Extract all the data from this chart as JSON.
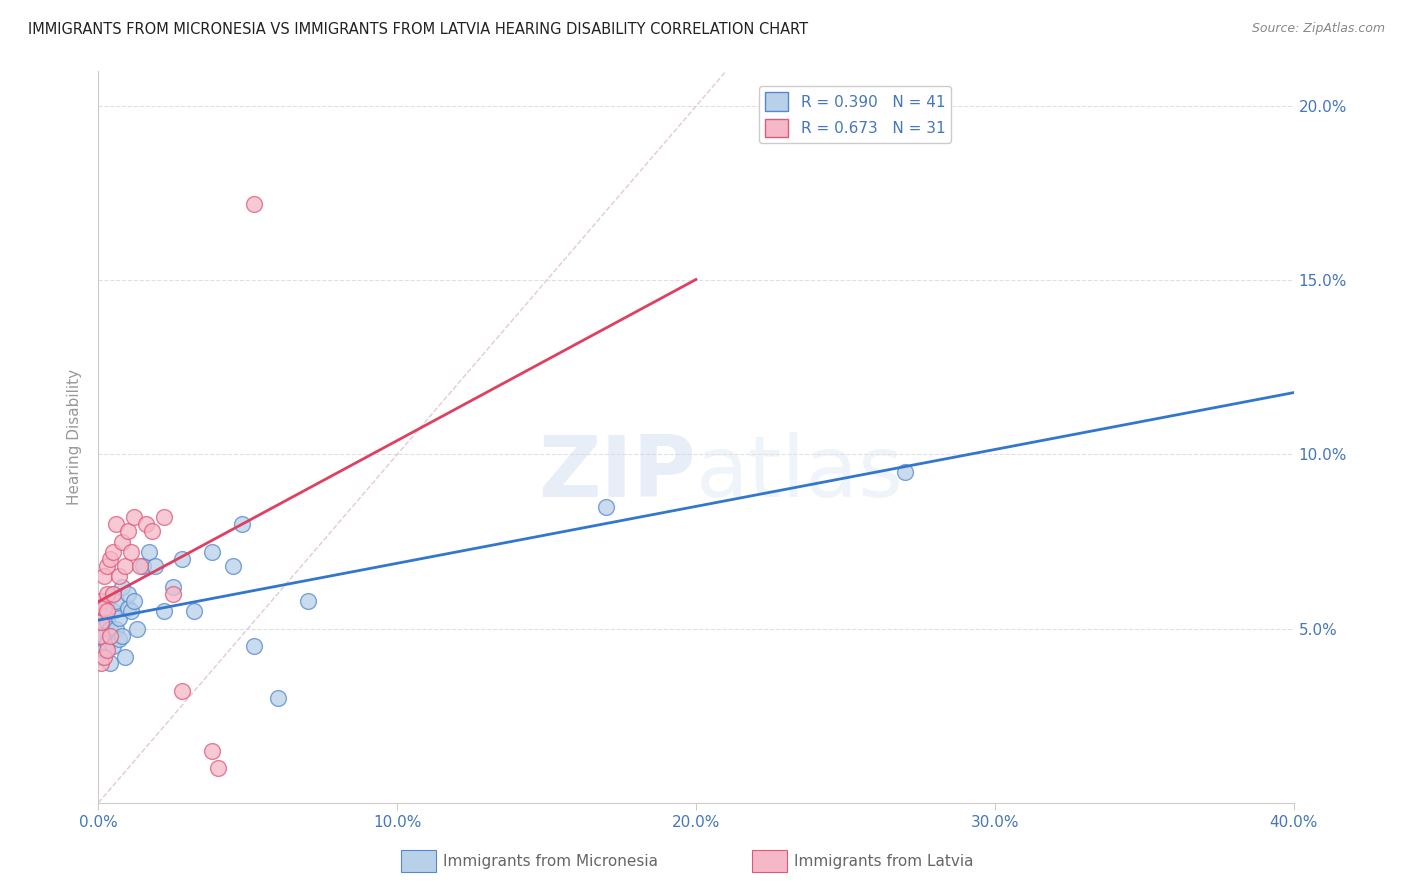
{
  "title": "IMMIGRANTS FROM MICRONESIA VS IMMIGRANTS FROM LATVIA HEARING DISABILITY CORRELATION CHART",
  "source": "Source: ZipAtlas.com",
  "ylabel": "Hearing Disability",
  "x_lim": [
    0.0,
    0.4
  ],
  "y_lim": [
    0.0,
    0.21
  ],
  "micronesia_color": "#b8d0e8",
  "latvia_color": "#f5b8c8",
  "micronesia_edge": "#5588cc",
  "latvia_edge": "#e05878",
  "regression_micronesia_color": "#3377cc",
  "regression_latvia_color": "#e04060",
  "diagonal_color": "#cccccc",
  "grid_color": "#e0e0e0",
  "axis_color": "#cccccc",
  "tick_label_color": "#4477bb",
  "title_color": "#222222",
  "r_micronesia": 0.39,
  "n_micronesia": 41,
  "r_latvia": 0.673,
  "n_latvia": 31,
  "micro_x": [
    0.001,
    0.001,
    0.001,
    0.002,
    0.002,
    0.002,
    0.003,
    0.003,
    0.003,
    0.004,
    0.004,
    0.005,
    0.005,
    0.005,
    0.006,
    0.006,
    0.007,
    0.007,
    0.008,
    0.008,
    0.009,
    0.01,
    0.01,
    0.011,
    0.012,
    0.013,
    0.015,
    0.017,
    0.019,
    0.022,
    0.025,
    0.028,
    0.032,
    0.038,
    0.045,
    0.048,
    0.052,
    0.06,
    0.07,
    0.17,
    0.27
  ],
  "micro_y": [
    0.05,
    0.055,
    0.042,
    0.048,
    0.056,
    0.044,
    0.052,
    0.046,
    0.058,
    0.05,
    0.04,
    0.055,
    0.06,
    0.045,
    0.05,
    0.058,
    0.053,
    0.047,
    0.048,
    0.062,
    0.042,
    0.056,
    0.06,
    0.055,
    0.058,
    0.05,
    0.068,
    0.072,
    0.068,
    0.055,
    0.062,
    0.07,
    0.055,
    0.072,
    0.068,
    0.08,
    0.045,
    0.03,
    0.058,
    0.085,
    0.095
  ],
  "latvia_x": [
    0.001,
    0.001,
    0.001,
    0.001,
    0.002,
    0.002,
    0.002,
    0.003,
    0.003,
    0.003,
    0.003,
    0.004,
    0.004,
    0.005,
    0.005,
    0.006,
    0.007,
    0.008,
    0.009,
    0.01,
    0.011,
    0.012,
    0.014,
    0.016,
    0.018,
    0.022,
    0.025,
    0.028,
    0.038,
    0.04,
    0.052
  ],
  "latvia_y": [
    0.04,
    0.048,
    0.052,
    0.058,
    0.042,
    0.056,
    0.065,
    0.06,
    0.068,
    0.044,
    0.055,
    0.07,
    0.048,
    0.06,
    0.072,
    0.08,
    0.065,
    0.075,
    0.068,
    0.078,
    0.072,
    0.082,
    0.068,
    0.08,
    0.078,
    0.082,
    0.06,
    0.032,
    0.015,
    0.01,
    0.172
  ]
}
